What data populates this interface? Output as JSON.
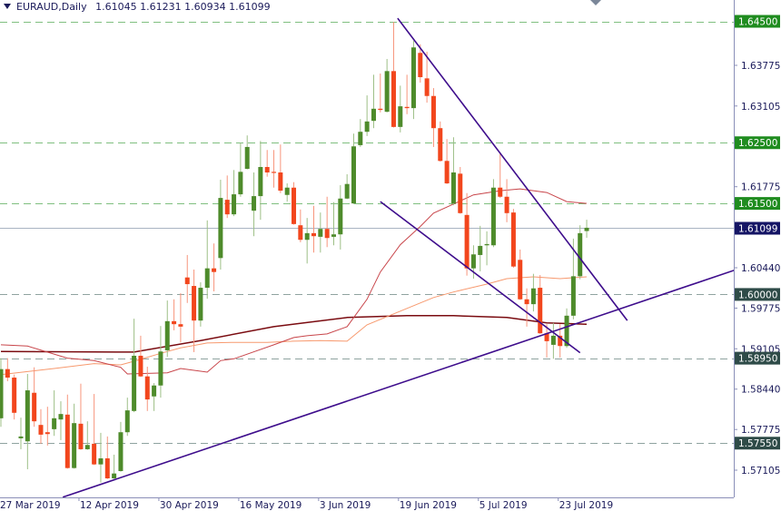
{
  "header": {
    "symbol_timeframe": "EURAUD,Daily",
    "open": "1.61045",
    "high": "1.61231",
    "low": "1.60934",
    "close": "1.61099"
  },
  "colors": {
    "bull": "#4e8b2b",
    "bear": "#f2461d",
    "bull_wick": "#9dbf86",
    "bear_wick": "#f7957c",
    "trendline": "#3e0d8c",
    "ma_fast": "#c8454a",
    "ma_mid": "#f7996e",
    "ma_slow": "#7a0b10",
    "green_level": "#1f8c1f",
    "dark_level": "#2e4b48",
    "current_price": "#151565",
    "axis_text": "#1a1a5a"
  },
  "chart_data": {
    "type": "candlestick",
    "title": "EURAUD,Daily",
    "x_tick_labels": [
      {
        "index": 0,
        "label": "27 Mar 2019"
      },
      {
        "index": 12,
        "label": "12 Apr 2019"
      },
      {
        "index": 24,
        "label": "30 Apr 2019"
      },
      {
        "index": 36,
        "label": "16 May 2019"
      },
      {
        "index": 48,
        "label": "3 Jun 2019"
      },
      {
        "index": 60,
        "label": "19 Jun 2019"
      },
      {
        "index": 72,
        "label": "5 Jul 2019"
      },
      {
        "index": 84,
        "label": "23 Jul 2019"
      }
    ],
    "y_ticks": [
      "1.63775",
      "1.63105",
      "1.61775",
      "1.60440",
      "1.59775",
      "1.59105",
      "1.58440",
      "1.57775",
      "1.57105"
    ],
    "ylim": [
      1.5665,
      1.6486
    ],
    "candles_ohlc": [
      [
        1.5796,
        1.5895,
        1.5782,
        1.5877
      ],
      [
        1.5877,
        1.5895,
        1.5857,
        1.5863
      ],
      [
        1.5863,
        1.5868,
        1.5794,
        1.5805
      ],
      [
        1.5763,
        1.5797,
        1.5745,
        1.5766
      ],
      [
        1.5758,
        1.5869,
        1.5712,
        1.5842
      ],
      [
        1.5838,
        1.588,
        1.5782,
        1.5791
      ],
      [
        1.5785,
        1.5811,
        1.5754,
        1.5769
      ],
      [
        1.5773,
        1.5815,
        1.5751,
        1.577
      ],
      [
        1.5778,
        1.5842,
        1.5767,
        1.5796
      ],
      [
        1.5794,
        1.5824,
        1.576,
        1.5803
      ],
      [
        1.5802,
        1.5835,
        1.5713,
        1.5714
      ],
      [
        1.5714,
        1.582,
        1.5713,
        1.5788
      ],
      [
        1.5787,
        1.5853,
        1.5744,
        1.5745
      ],
      [
        1.5745,
        1.5791,
        1.5744,
        1.5752
      ],
      [
        1.5754,
        1.5836,
        1.5719,
        1.572
      ],
      [
        1.572,
        1.5772,
        1.569,
        1.573
      ],
      [
        1.573,
        1.5766,
        1.5696,
        1.5697
      ],
      [
        1.5697,
        1.5736,
        1.5696,
        1.5705
      ],
      [
        1.5709,
        1.579,
        1.5708,
        1.5773
      ],
      [
        1.5773,
        1.583,
        1.5767,
        1.5809
      ],
      [
        1.5808,
        1.596,
        1.5806,
        1.5899
      ],
      [
        1.5899,
        1.5932,
        1.5864,
        1.5865
      ],
      [
        1.5865,
        1.5881,
        1.5808,
        1.5827
      ],
      [
        1.5832,
        1.5854,
        1.5808,
        1.585
      ],
      [
        1.585,
        1.5948,
        1.583,
        1.5906
      ],
      [
        1.5908,
        1.599,
        1.5897,
        1.5956
      ],
      [
        1.5956,
        1.5992,
        1.5941,
        1.5951
      ],
      [
        1.5951,
        1.6002,
        1.5921,
        1.5947
      ],
      [
        1.6028,
        1.6065,
        1.5986,
        1.6017
      ],
      [
        1.6014,
        1.6041,
        1.5905,
        1.5957
      ],
      [
        1.5957,
        1.602,
        1.5947,
        1.6011
      ],
      [
        1.6011,
        1.6122,
        1.5993,
        1.6043
      ],
      [
        1.6043,
        1.6084,
        1.6005,
        1.6037
      ],
      [
        1.606,
        1.6189,
        1.6041,
        1.6159
      ],
      [
        1.6156,
        1.6196,
        1.6126,
        1.6132
      ],
      [
        1.6132,
        1.6205,
        1.6129,
        1.6165
      ],
      [
        1.6165,
        1.625,
        1.6161,
        1.6202
      ],
      [
        1.6207,
        1.6262,
        1.6206,
        1.6243
      ],
      [
        1.6138,
        1.6201,
        1.6096,
        1.6162
      ],
      [
        1.6162,
        1.6253,
        1.6123,
        1.621
      ],
      [
        1.621,
        1.6238,
        1.6194,
        1.6201
      ],
      [
        1.6202,
        1.6238,
        1.6176,
        1.6201
      ],
      [
        1.6201,
        1.6247,
        1.6167,
        1.6171
      ],
      [
        1.6164,
        1.6183,
        1.6153,
        1.6176
      ],
      [
        1.6176,
        1.6185,
        1.6115,
        1.6116
      ],
      [
        1.6114,
        1.614,
        1.6086,
        1.609
      ],
      [
        1.609,
        1.6126,
        1.6051,
        1.6101
      ],
      [
        1.6101,
        1.6146,
        1.6069,
        1.6096
      ],
      [
        1.6095,
        1.6135,
        1.6069,
        1.6108
      ],
      [
        1.6108,
        1.6161,
        1.6078,
        1.6093
      ],
      [
        1.6095,
        1.6152,
        1.6081,
        1.6099
      ],
      [
        1.6099,
        1.618,
        1.6074,
        1.6158
      ],
      [
        1.6158,
        1.6198,
        1.6157,
        1.6182
      ],
      [
        1.615,
        1.6265,
        1.6149,
        1.6244
      ],
      [
        1.6246,
        1.6289,
        1.6243,
        1.6268
      ],
      [
        1.6268,
        1.6328,
        1.6261,
        1.6285
      ],
      [
        1.6286,
        1.6362,
        1.6274,
        1.6306
      ],
      [
        1.6306,
        1.6364,
        1.63,
        1.6304
      ],
      [
        1.6301,
        1.6388,
        1.63,
        1.6368
      ],
      [
        1.6368,
        1.6449,
        1.6275,
        1.6276
      ],
      [
        1.6276,
        1.6344,
        1.6267,
        1.631
      ],
      [
        1.6309,
        1.6362,
        1.6297,
        1.6307
      ],
      [
        1.6307,
        1.6418,
        1.6289,
        1.6407
      ],
      [
        1.6398,
        1.6412,
        1.6349,
        1.6358
      ],
      [
        1.6356,
        1.64,
        1.6316,
        1.6327
      ],
      [
        1.6327,
        1.634,
        1.6243,
        1.6274
      ],
      [
        1.6274,
        1.6285,
        1.6219,
        1.622
      ],
      [
        1.622,
        1.6256,
        1.6182,
        1.6183
      ],
      [
        1.615,
        1.6259,
        1.6147,
        1.6201
      ],
      [
        1.6199,
        1.621,
        1.6133,
        1.6134
      ],
      [
        1.6131,
        1.6167,
        1.6031,
        1.6043
      ],
      [
        1.6043,
        1.6081,
        1.6026,
        1.6066
      ],
      [
        1.6065,
        1.6113,
        1.6038,
        1.608
      ],
      [
        1.6081,
        1.6104,
        1.6048,
        1.6083
      ],
      [
        1.6081,
        1.619,
        1.6078,
        1.6176
      ],
      [
        1.6176,
        1.6234,
        1.6159,
        1.6161
      ],
      [
        1.6161,
        1.619,
        1.6119,
        1.6134
      ],
      [
        1.6135,
        1.6141,
        1.6044,
        1.6046
      ],
      [
        1.6057,
        1.6074,
        1.5991,
        1.5992
      ],
      [
        1.5992,
        1.601,
        1.5947,
        1.5984
      ],
      [
        1.5984,
        1.6034,
        1.5972,
        1.601
      ],
      [
        1.6011,
        1.6032,
        1.5935,
        1.5936
      ],
      [
        1.5936,
        1.5951,
        1.5896,
        1.5923
      ],
      [
        1.5917,
        1.5953,
        1.5894,
        1.5932
      ],
      [
        1.5932,
        1.5951,
        1.5896,
        1.5915
      ],
      [
        1.5915,
        1.5977,
        1.5912,
        1.5965
      ],
      [
        1.5965,
        1.6092,
        1.5959,
        1.603
      ],
      [
        1.603,
        1.6114,
        1.6025,
        1.6101
      ],
      [
        1.61045,
        1.61231,
        1.60934,
        1.61099
      ]
    ],
    "moving_averages": [
      {
        "key": "ma_slow",
        "points": [
          [
            0,
            1.5906
          ],
          [
            20,
            1.5905
          ],
          [
            30,
            1.5924
          ],
          [
            41,
            1.5947
          ],
          [
            52,
            1.5962
          ],
          [
            61,
            1.5965
          ],
          [
            68,
            1.5965
          ],
          [
            76,
            1.5962
          ],
          [
            82,
            1.5953
          ],
          [
            88,
            1.5951
          ]
        ]
      },
      {
        "key": "ma_mid",
        "points": [
          [
            0,
            1.5868
          ],
          [
            8,
            1.5878
          ],
          [
            14,
            1.5886
          ],
          [
            18,
            1.5884
          ],
          [
            20,
            1.589
          ],
          [
            24,
            1.5903
          ],
          [
            27,
            1.5912
          ],
          [
            31,
            1.592
          ],
          [
            35,
            1.5921
          ],
          [
            40,
            1.5921
          ],
          [
            44,
            1.5923
          ],
          [
            48,
            1.5924
          ],
          [
            52,
            1.5923
          ],
          [
            55,
            1.595
          ],
          [
            61,
            1.5977
          ],
          [
            65,
            1.5995
          ],
          [
            68,
            1.6004
          ],
          [
            73,
            1.6017
          ],
          [
            76,
            1.6026
          ],
          [
            80,
            1.6029
          ],
          [
            84,
            1.6026
          ],
          [
            88,
            1.6029
          ]
        ]
      },
      {
        "key": "ma_fast",
        "points": [
          [
            0,
            1.5917
          ],
          [
            4,
            1.5915
          ],
          [
            10,
            1.5895
          ],
          [
            14,
            1.5891
          ],
          [
            18,
            1.588
          ],
          [
            19,
            1.5869
          ],
          [
            25,
            1.5871
          ],
          [
            27,
            1.5878
          ],
          [
            31,
            1.5872
          ],
          [
            33,
            1.5891
          ],
          [
            35,
            1.5894
          ],
          [
            41,
            1.5917
          ],
          [
            44,
            1.5929
          ],
          [
            46,
            1.5932
          ],
          [
            49,
            1.5935
          ],
          [
            52,
            1.5947
          ],
          [
            55,
            1.5992
          ],
          [
            57,
            1.6037
          ],
          [
            60,
            1.6082
          ],
          [
            63,
            1.6112
          ],
          [
            65,
            1.6134
          ],
          [
            68,
            1.6149
          ],
          [
            71,
            1.6164
          ],
          [
            75,
            1.6171
          ],
          [
            78,
            1.6174
          ],
          [
            82,
            1.6168
          ],
          [
            85,
            1.6153
          ],
          [
            88,
            1.615
          ]
        ]
      }
    ],
    "trendlines": [
      {
        "from": [
          59.6,
          1.6455
        ],
        "to": [
          94.1,
          1.5957
        ]
      },
      {
        "from": [
          57.0,
          1.6153
        ],
        "to": [
          87.0,
          1.5904
        ]
      },
      {
        "from": [
          9.3,
          1.5666
        ],
        "to": [
          110.2,
          1.604
        ]
      }
    ],
    "levels": [
      {
        "price": 1.645,
        "label": "1.64500",
        "style": "green"
      },
      {
        "price": 1.625,
        "label": "1.62500",
        "style": "green"
      },
      {
        "price": 1.615,
        "label": "1.61500",
        "style": "green"
      },
      {
        "price": 1.6,
        "label": "1.60000",
        "style": "dark"
      },
      {
        "price": 1.5895,
        "label": "1.58950",
        "style": "dark"
      },
      {
        "price": 1.5755,
        "label": "1.57550",
        "style": "dark"
      }
    ],
    "current_price": {
      "price": 1.61099,
      "label": "1.61099"
    }
  }
}
